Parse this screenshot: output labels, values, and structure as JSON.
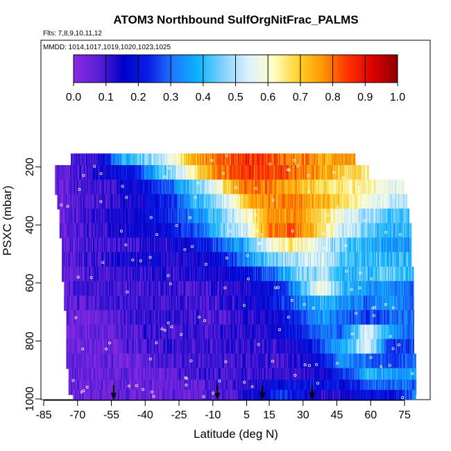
{
  "chart_data": {
    "type": "heatmap",
    "title": "ATOM3 Northbound SulfOrgNitFrac_PALMS",
    "flights_note": "Flts: 7,8,9,10,11,12",
    "dates_note": "MMDD: 1014,1017,1019,1020,1023,1025",
    "xlabel": "Latitude (deg N)",
    "ylabel": "PSXC (mbar)",
    "x_ticks": [
      "-85",
      "-70",
      "-55",
      "-40",
      "-25",
      "-10",
      "5",
      "15",
      "30",
      "45",
      "60",
      "75"
    ],
    "x_tick_values": [
      -85,
      -70,
      -55,
      -40,
      -25,
      -10,
      5,
      15,
      30,
      45,
      60,
      75
    ],
    "y_ticks": [
      "200",
      "400",
      "600",
      "800",
      "1000"
    ],
    "y_tick_values": [
      200,
      400,
      600,
      800,
      1000
    ],
    "xlim": [
      -85,
      80
    ],
    "ylim": [
      1000,
      0
    ],
    "colorbar": {
      "range": [
        0,
        1
      ],
      "ticks": [
        "0.0",
        "0.1",
        "0.2",
        "0.3",
        "0.4",
        "0.5",
        "0.6",
        "0.7",
        "0.8",
        "0.9",
        "1.0"
      ],
      "tick_values": [
        0.0,
        0.1,
        0.2,
        0.3,
        0.4,
        0.5,
        0.6,
        0.7,
        0.8,
        0.9,
        1.0
      ],
      "colors": [
        "#8b2be2",
        "#5a1fd6",
        "#0000c8",
        "#0a1ee6",
        "#1e78ff",
        "#0ab4ff",
        "#82d2ff",
        "#dcf0ff",
        "#ffffc8",
        "#ffd22d",
        "#ff9600",
        "#ff3200",
        "#dc0000",
        "#8c0000"
      ]
    },
    "layers": [
      {
        "p": 180,
        "x0": -73,
        "x1": 53,
        "v": [
          0.1,
          0.1,
          0.35,
          0.45,
          0.55,
          0.7,
          0.8,
          0.85,
          0.85,
          0.8,
          0.78,
          0.75,
          0.78
        ]
      },
      {
        "p": 220,
        "x0": -80,
        "x1": 59,
        "v": [
          0.05,
          0.1,
          0.15,
          0.2,
          0.35,
          0.5,
          0.7,
          0.8,
          0.85,
          0.85,
          0.8,
          0.75,
          0.7,
          0.65
        ]
      },
      {
        "p": 270,
        "x0": -80,
        "x1": 75,
        "v": [
          0.05,
          0.08,
          0.1,
          0.15,
          0.2,
          0.3,
          0.45,
          0.6,
          0.8,
          0.8,
          0.75,
          0.7,
          0.65,
          0.65,
          0.6,
          0.55
        ]
      },
      {
        "p": 320,
        "x0": -79,
        "x1": 76,
        "v": [
          0.05,
          0.08,
          0.1,
          0.12,
          0.18,
          0.25,
          0.4,
          0.5,
          0.7,
          0.78,
          0.8,
          0.75,
          0.7,
          0.6,
          0.55,
          0.5
        ]
      },
      {
        "p": 370,
        "x0": -78,
        "x1": 77,
        "v": [
          0.05,
          0.1,
          0.12,
          0.15,
          0.2,
          0.25,
          0.35,
          0.45,
          0.6,
          0.75,
          0.78,
          0.7,
          0.6,
          0.5,
          0.45,
          0.4
        ]
      },
      {
        "p": 420,
        "x0": -78,
        "x1": 78,
        "v": [
          0.05,
          0.1,
          0.12,
          0.15,
          0.15,
          0.2,
          0.3,
          0.45,
          0.55,
          0.8,
          0.82,
          0.7,
          0.55,
          0.45,
          0.4,
          0.4
        ]
      },
      {
        "p": 470,
        "x0": -77,
        "x1": 78,
        "v": [
          0.05,
          0.1,
          0.1,
          0.1,
          0.12,
          0.15,
          0.2,
          0.3,
          0.4,
          0.6,
          0.65,
          0.55,
          0.45,
          0.4,
          0.35,
          0.35
        ]
      },
      {
        "p": 520,
        "x0": -77,
        "x1": 78,
        "v": [
          0.05,
          0.1,
          0.12,
          0.15,
          0.15,
          0.15,
          0.15,
          0.2,
          0.35,
          0.45,
          0.5,
          0.55,
          0.45,
          0.4,
          0.4,
          0.4
        ]
      },
      {
        "p": 570,
        "x0": -77,
        "x1": 79,
        "v": [
          0.05,
          0.08,
          0.1,
          0.12,
          0.12,
          0.12,
          0.15,
          0.15,
          0.2,
          0.3,
          0.45,
          0.5,
          0.4,
          0.4,
          0.45,
          0.4
        ]
      },
      {
        "p": 620,
        "x0": -76,
        "x1": 79,
        "v": [
          0.05,
          0.1,
          0.1,
          0.1,
          0.1,
          0.1,
          0.1,
          0.12,
          0.15,
          0.2,
          0.35,
          0.6,
          0.4,
          0.35,
          0.35,
          0.3
        ]
      },
      {
        "p": 670,
        "x0": -76,
        "x1": 79,
        "v": [
          0.05,
          0.08,
          0.1,
          0.1,
          0.1,
          0.1,
          0.1,
          0.1,
          0.15,
          0.2,
          0.3,
          0.4,
          0.35,
          0.3,
          0.35,
          0.3
        ]
      },
      {
        "p": 720,
        "x0": -75,
        "x1": 79,
        "v": [
          0.05,
          0.05,
          0.08,
          0.1,
          0.1,
          0.1,
          0.1,
          0.1,
          0.12,
          0.15,
          0.25,
          0.35,
          0.3,
          0.25,
          0.3,
          0.3
        ]
      },
      {
        "p": 770,
        "x0": -75,
        "x1": 79,
        "v": [
          0.05,
          0.05,
          0.05,
          0.1,
          0.1,
          0.1,
          0.1,
          0.1,
          0.12,
          0.15,
          0.2,
          0.3,
          0.3,
          0.55,
          0.35,
          0.3
        ]
      },
      {
        "p": 820,
        "x0": -75,
        "x1": 79,
        "v": [
          0.05,
          0.05,
          0.05,
          0.08,
          0.1,
          0.1,
          0.1,
          0.1,
          0.1,
          0.12,
          0.15,
          0.25,
          0.4,
          0.55,
          0.25,
          0.25
        ]
      },
      {
        "p": 870,
        "x0": -75,
        "x1": 80,
        "v": [
          0.05,
          0.05,
          0.05,
          0.05,
          0.08,
          0.1,
          0.1,
          0.1,
          0.1,
          0.1,
          0.12,
          0.2,
          0.35,
          0.3,
          0.25,
          0.3
        ]
      },
      {
        "p": 920,
        "x0": -74,
        "x1": 80,
        "v": [
          0.05,
          0.05,
          0.05,
          0.05,
          0.05,
          0.08,
          0.1,
          0.1,
          0.1,
          0.1,
          0.1,
          0.15,
          0.25,
          0.4,
          0.35,
          0.35
        ]
      },
      {
        "p": 960,
        "x0": -74,
        "x1": 80,
        "v": [
          0.05,
          0.05,
          0.05,
          0.05,
          0.05,
          0.05,
          0.08,
          0.1,
          0.12,
          0.2,
          0.2,
          0.2,
          0.2,
          0.3,
          0.3,
          0.3
        ]
      },
      {
        "p": 995,
        "x0": -72,
        "x1": 80,
        "v": [
          0.05,
          0.05,
          0.05,
          0.05,
          0.05,
          0.05,
          0.08,
          0.1,
          0.15,
          0.25,
          0.2,
          0.1,
          0.15,
          0.2,
          0.2,
          0.3
        ]
      }
    ],
    "arrow_latitudes": [
      -54,
      -8,
      12,
      34
    ]
  }
}
